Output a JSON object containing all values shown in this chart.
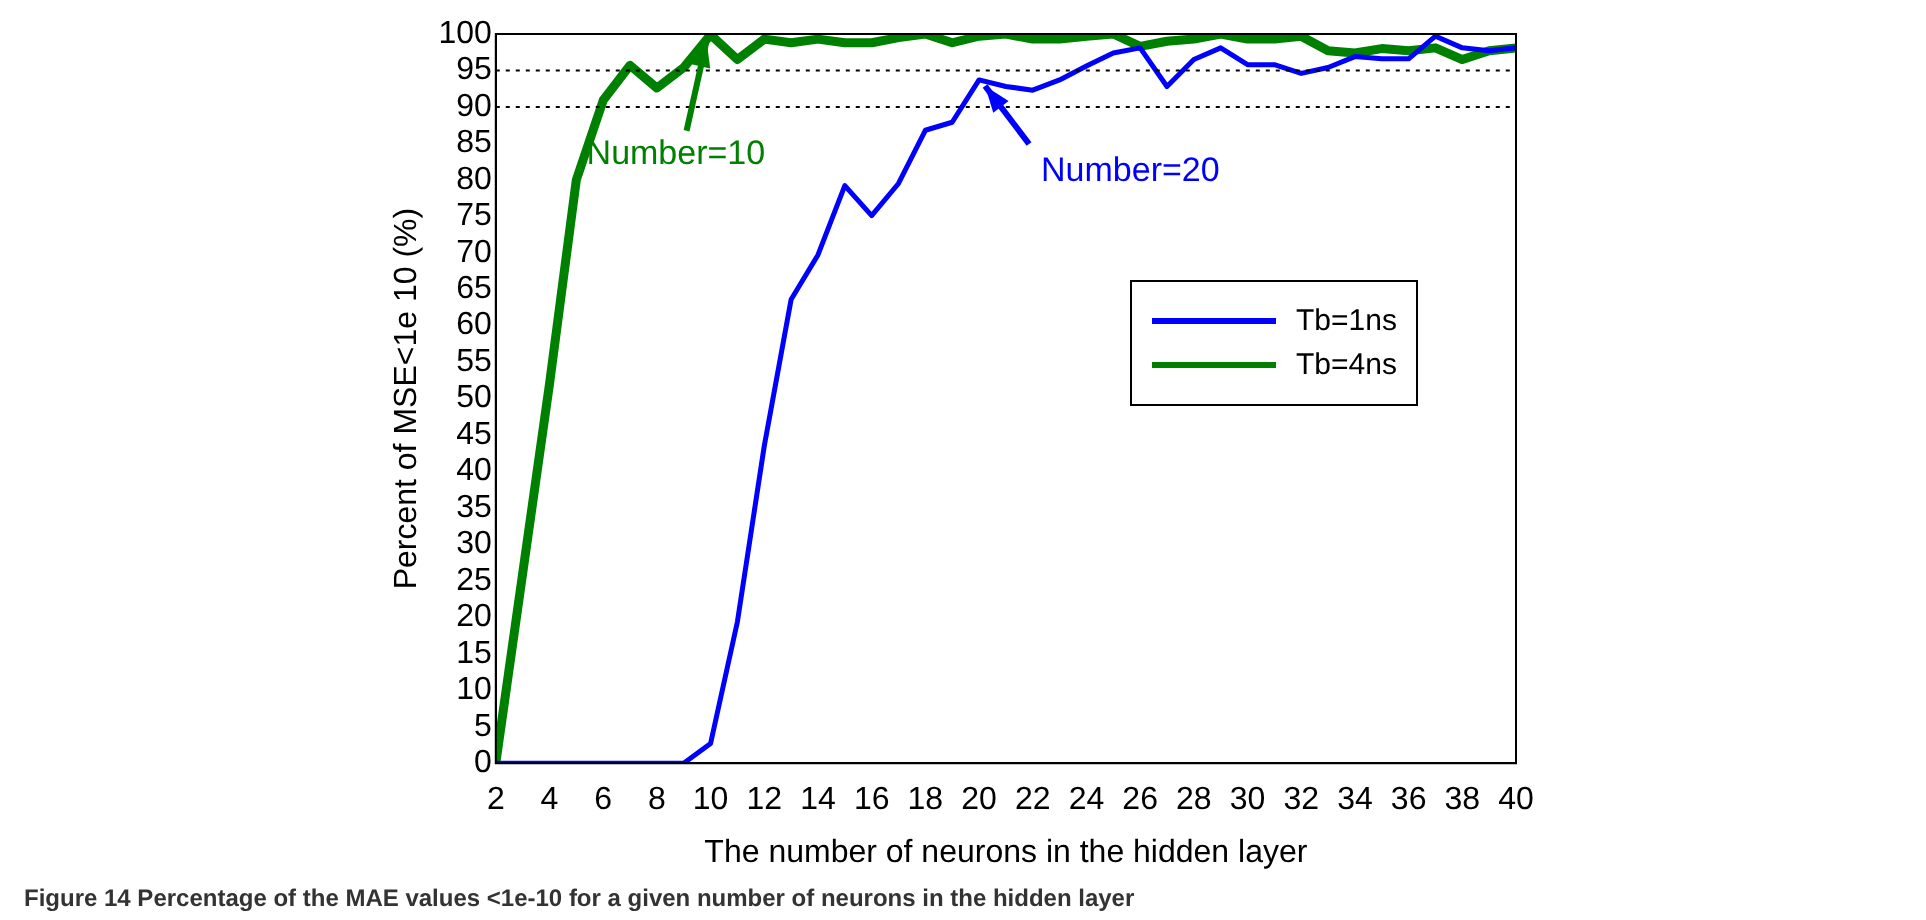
{
  "chart_data": {
    "type": "line",
    "xlabel": "The number of neurons in the hidden layer",
    "ylabel": "Percent of MSE<1e 10 (%)",
    "x": [
      2,
      3,
      4,
      5,
      6,
      7,
      8,
      9,
      10,
      11,
      12,
      13,
      14,
      15,
      16,
      17,
      18,
      19,
      20,
      21,
      22,
      23,
      24,
      25,
      26,
      27,
      28,
      29,
      30,
      31,
      32,
      33,
      34,
      35,
      36,
      37,
      38,
      39,
      40
    ],
    "series": [
      {
        "name": "Tb=1ns",
        "color": "#0000ff",
        "values": [
          0,
          0,
          0,
          0,
          0,
          0,
          0,
          0,
          2.7,
          19.4,
          43.5,
          63.6,
          69.7,
          79.2,
          75.1,
          79.5,
          86.8,
          87.9,
          93.7,
          92.8,
          92.3,
          93.7,
          95.6,
          97.4,
          98.1,
          92.8,
          96.5,
          98.1,
          95.8,
          95.8,
          94.6,
          95.4,
          96.9,
          96.6,
          96.6,
          99.7,
          98.1,
          97.7,
          98.1
        ]
      },
      {
        "name": "Tb=4ns",
        "color": "#008000",
        "values": [
          0,
          26,
          52,
          80,
          90.9,
          95.7,
          92.6,
          95.4,
          99.9,
          96.5,
          99.3,
          98.8,
          99.3,
          98.8,
          98.8,
          99.5,
          100,
          98.8,
          99.7,
          100,
          99.3,
          99.3,
          99.7,
          100,
          98.3,
          99,
          99.3,
          100,
          99.3,
          99.3,
          99.7,
          97.7,
          97.4,
          98,
          97.7,
          98.1,
          96.5,
          97.7,
          98.1
        ]
      }
    ],
    "xlim": [
      2,
      40
    ],
    "xticks": [
      2,
      4,
      6,
      8,
      10,
      12,
      14,
      16,
      18,
      20,
      22,
      24,
      26,
      28,
      30,
      32,
      34,
      36,
      38,
      40
    ],
    "ylim": [
      0,
      100
    ],
    "yticks": [
      0,
      5,
      10,
      15,
      20,
      25,
      30,
      35,
      40,
      45,
      50,
      55,
      60,
      65,
      70,
      75,
      80,
      85,
      90,
      95,
      100
    ],
    "ref_lines": [
      {
        "axis": "y",
        "value": 90,
        "color": "#000000",
        "line_style": "dotted"
      },
      {
        "axis": "y",
        "value": 95,
        "color": "#000000",
        "line_style": "dotted"
      }
    ],
    "annotations": [
      {
        "text": "Number=10",
        "x": 10,
        "y": 99.9
      },
      {
        "text": "Number=20",
        "x": 20,
        "y": 93.7
      },
      "Figure 14 Percentage of the MAE values <1e-10 for a given number of neurons in the hidden layer"
    ],
    "grid": false,
    "legend": "right",
    "marker": "none",
    "line_style": "solid"
  }
}
